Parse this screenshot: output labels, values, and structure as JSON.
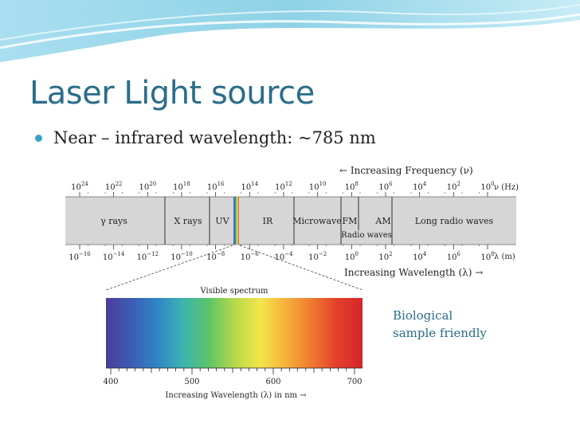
{
  "slide": {
    "title": "Laser Light source",
    "bullet": "Near – infrared wavelength:  ~785 nm",
    "note_line1": "Biological",
    "note_line2": "sample friendly"
  },
  "colors": {
    "title": "#2a6d8a",
    "bullet_dot": "#3aa3c4",
    "band_gray": "#d6d6d6",
    "swoosh": "#8fd2e6"
  },
  "chart_data": {
    "type": "diagram",
    "frequency_axis": {
      "label": "← Increasing Frequency (ν)",
      "unit": "ν (Hz)",
      "ticks": [
        {
          "base": "10",
          "exp": "24"
        },
        {
          "base": "10",
          "exp": "22"
        },
        {
          "base": "10",
          "exp": "20"
        },
        {
          "base": "10",
          "exp": "18"
        },
        {
          "base": "10",
          "exp": "16"
        },
        {
          "base": "10",
          "exp": "14"
        },
        {
          "base": "10",
          "exp": "12"
        },
        {
          "base": "10",
          "exp": "10"
        },
        {
          "base": "10",
          "exp": "8"
        },
        {
          "base": "10",
          "exp": "6"
        },
        {
          "base": "10",
          "exp": "4"
        },
        {
          "base": "10",
          "exp": "2"
        },
        {
          "base": "10",
          "exp": "0"
        }
      ]
    },
    "wavelength_axis": {
      "label": "Increasing Wavelength (λ) →",
      "unit": "λ (m)",
      "ticks": [
        {
          "base": "10",
          "exp": "−16"
        },
        {
          "base": "10",
          "exp": "−14"
        },
        {
          "base": "10",
          "exp": "−12"
        },
        {
          "base": "10",
          "exp": "−10"
        },
        {
          "base": "10",
          "exp": "−8"
        },
        {
          "base": "10",
          "exp": "−6"
        },
        {
          "base": "10",
          "exp": "−4"
        },
        {
          "base": "10",
          "exp": "−2"
        },
        {
          "base": "10",
          "exp": "0"
        },
        {
          "base": "10",
          "exp": "2"
        },
        {
          "base": "10",
          "exp": "4"
        },
        {
          "base": "10",
          "exp": "6"
        },
        {
          "base": "10",
          "exp": "8"
        }
      ]
    },
    "regions": [
      "γ rays",
      "X rays",
      "UV",
      "IR",
      "Microwave",
      "FM",
      "AM",
      "Long radio waves"
    ],
    "sub_label": "Radio waves",
    "visible": {
      "title": "Visible spectrum",
      "axis_label": "Increasing Wavelength (λ) in nm →",
      "range": [
        400,
        700
      ],
      "tick_labels": [
        400,
        500,
        600,
        700
      ],
      "gradient": [
        "#4b3c9a",
        "#3d5db5",
        "#2f86c5",
        "#3bb3b0",
        "#5cc46a",
        "#b5d84a",
        "#f2e64a",
        "#f6b23a",
        "#f07a2f",
        "#e3402c",
        "#d6252a"
      ]
    }
  }
}
